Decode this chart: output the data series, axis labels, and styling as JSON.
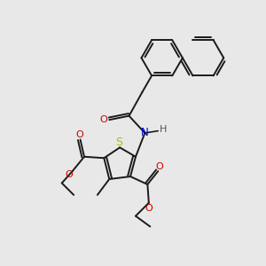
{
  "bg_color": "#e8e8e8",
  "bond_color": "#1a1a1a",
  "sulfur_color": "#b8b800",
  "nitrogen_color": "#0000cc",
  "oxygen_color": "#cc0000",
  "line_width": 1.4,
  "fig_size": [
    3.0,
    3.0
  ],
  "dpi": 100,
  "xlim": [
    0,
    10
  ],
  "ylim": [
    0,
    10
  ]
}
